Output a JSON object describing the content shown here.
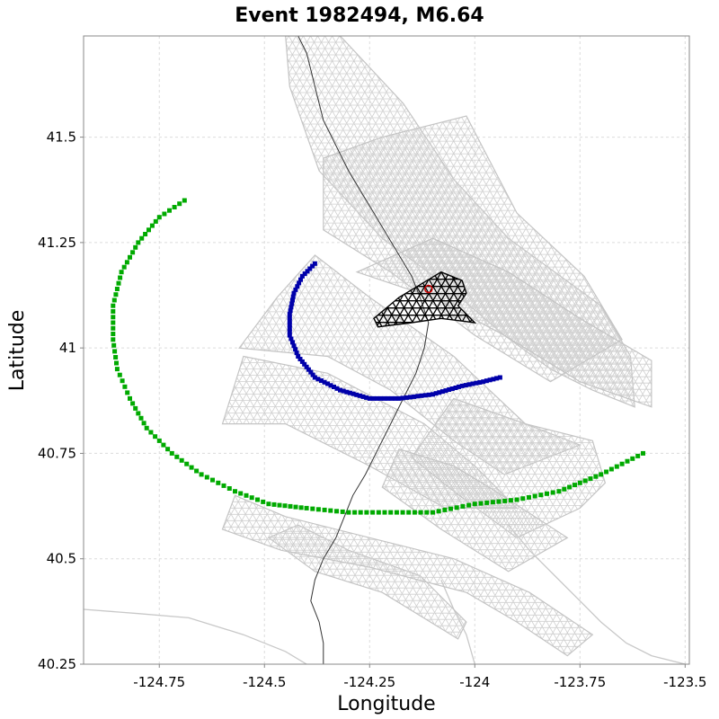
{
  "chart_data": {
    "type": "scatter",
    "title": "Event 1982494, M6.64",
    "xlabel": "Longitude",
    "ylabel": "Latitude",
    "xlim": [
      -124.93,
      -123.49
    ],
    "ylim": [
      40.25,
      41.74
    ],
    "grid": true,
    "xticks": [
      {
        "value": -124.75,
        "label": "-124.75"
      },
      {
        "value": -124.5,
        "label": "-124.5"
      },
      {
        "value": -124.25,
        "label": "-124.25"
      },
      {
        "value": -124.0,
        "label": "-124"
      },
      {
        "value": -123.75,
        "label": "-123.75"
      },
      {
        "value": -123.5,
        "label": "-123.5"
      }
    ],
    "yticks": [
      {
        "value": 40.25,
        "label": "40.25"
      },
      {
        "value": 40.5,
        "label": "40.5"
      },
      {
        "value": 40.75,
        "label": "40.75"
      },
      {
        "value": 41.0,
        "label": "41"
      },
      {
        "value": 41.25,
        "label": "41.25"
      },
      {
        "value": 41.5,
        "label": "41.5"
      }
    ],
    "fault_meshes": [
      {
        "outline": [
          [
            -124.45,
            41.74
          ],
          [
            -124.32,
            41.74
          ],
          [
            -124.17,
            41.58
          ],
          [
            -124.05,
            41.4
          ],
          [
            -123.92,
            41.26
          ],
          [
            -123.7,
            41.1
          ],
          [
            -123.63,
            40.98
          ],
          [
            -123.62,
            40.86
          ],
          [
            -123.72,
            40.9
          ],
          [
            -123.82,
            40.95
          ],
          [
            -123.93,
            41.03
          ],
          [
            -124.07,
            41.15
          ],
          [
            -124.22,
            41.26
          ],
          [
            -124.37,
            41.42
          ],
          [
            -124.44,
            41.62
          ]
        ],
        "color": "#cfcfcf"
      },
      {
        "outline": [
          [
            -124.36,
            41.45
          ],
          [
            -124.22,
            41.5
          ],
          [
            -124.02,
            41.55
          ],
          [
            -123.9,
            41.32
          ],
          [
            -123.74,
            41.17
          ],
          [
            -123.65,
            41.02
          ],
          [
            -123.82,
            40.92
          ],
          [
            -124.0,
            41.03
          ],
          [
            -124.2,
            41.18
          ],
          [
            -124.36,
            41.28
          ]
        ],
        "color": "#cfcfcf"
      },
      {
        "outline": [
          [
            -124.28,
            41.18
          ],
          [
            -124.1,
            41.12
          ],
          [
            -123.93,
            41.03
          ],
          [
            -123.75,
            40.92
          ],
          [
            -123.58,
            40.86
          ],
          [
            -123.58,
            40.97
          ],
          [
            -123.75,
            41.07
          ],
          [
            -123.92,
            41.18
          ],
          [
            -124.1,
            41.26
          ]
        ],
        "color": "#cfcfcf"
      },
      {
        "outline": [
          [
            -124.38,
            41.22
          ],
          [
            -124.25,
            41.12
          ],
          [
            -124.05,
            40.98
          ],
          [
            -123.88,
            40.82
          ],
          [
            -123.75,
            40.77
          ],
          [
            -123.93,
            40.7
          ],
          [
            -124.05,
            40.78
          ],
          [
            -124.2,
            40.9
          ],
          [
            -124.35,
            40.98
          ],
          [
            -124.56,
            41.0
          ],
          [
            -124.47,
            41.12
          ]
        ],
        "color": "#cfcfcf"
      },
      {
        "outline": [
          [
            -124.55,
            40.98
          ],
          [
            -124.35,
            40.94
          ],
          [
            -124.12,
            40.82
          ],
          [
            -124.0,
            40.72
          ],
          [
            -123.9,
            40.62
          ],
          [
            -124.07,
            40.62
          ],
          [
            -124.25,
            40.72
          ],
          [
            -124.45,
            40.82
          ],
          [
            -124.6,
            40.82
          ]
        ],
        "color": "#cfcfcf"
      },
      {
        "outline": [
          [
            -124.05,
            40.88
          ],
          [
            -123.88,
            40.82
          ],
          [
            -123.72,
            40.78
          ],
          [
            -123.69,
            40.68
          ],
          [
            -123.75,
            40.62
          ],
          [
            -123.9,
            40.55
          ],
          [
            -124.05,
            40.66
          ],
          [
            -124.15,
            40.74
          ]
        ],
        "color": "#cfcfcf"
      },
      {
        "outline": [
          [
            -124.18,
            40.76
          ],
          [
            -124.05,
            40.72
          ],
          [
            -123.95,
            40.66
          ],
          [
            -123.78,
            40.55
          ],
          [
            -123.92,
            40.47
          ],
          [
            -124.08,
            40.57
          ],
          [
            -124.22,
            40.67
          ]
        ],
        "color": "#cfcfcf"
      },
      {
        "outline": [
          [
            -124.42,
            40.58
          ],
          [
            -124.3,
            40.52
          ],
          [
            -124.13,
            40.46
          ],
          [
            -124.02,
            40.35
          ],
          [
            -124.04,
            40.31
          ],
          [
            -124.22,
            40.42
          ],
          [
            -124.38,
            40.47
          ],
          [
            -124.49,
            40.55
          ]
        ],
        "color": "#cfcfcf"
      },
      {
        "outline": [
          [
            -124.6,
            40.57
          ],
          [
            -124.46,
            40.52
          ],
          [
            -124.25,
            40.48
          ],
          [
            -124.02,
            40.42
          ],
          [
            -123.9,
            40.35
          ],
          [
            -123.78,
            40.27
          ],
          [
            -123.72,
            40.32
          ],
          [
            -123.87,
            40.42
          ],
          [
            -124.05,
            40.5
          ],
          [
            -124.25,
            40.55
          ],
          [
            -124.45,
            40.6
          ],
          [
            -124.57,
            40.65
          ]
        ],
        "color": "#cfcfcf"
      }
    ],
    "coastline": [
      [
        -124.42,
        41.74
      ],
      [
        -124.4,
        41.7
      ],
      [
        -124.39,
        41.66
      ],
      [
        -124.38,
        41.62
      ],
      [
        -124.37,
        41.58
      ],
      [
        -124.36,
        41.54
      ],
      [
        -124.34,
        41.5
      ],
      [
        -124.32,
        41.46
      ],
      [
        -124.3,
        41.42
      ],
      [
        -124.27,
        41.37
      ],
      [
        -124.24,
        41.32
      ],
      [
        -124.21,
        41.27
      ],
      [
        -124.18,
        41.22
      ],
      [
        -124.15,
        41.17
      ],
      [
        -124.13,
        41.12
      ],
      [
        -124.11,
        41.06
      ],
      [
        -124.12,
        41.0
      ],
      [
        -124.14,
        40.94
      ],
      [
        -124.17,
        40.88
      ],
      [
        -124.2,
        40.82
      ],
      [
        -124.23,
        40.76
      ],
      [
        -124.26,
        40.7
      ],
      [
        -124.29,
        40.65
      ],
      [
        -124.31,
        40.6
      ],
      [
        -124.33,
        40.55
      ],
      [
        -124.36,
        40.5
      ],
      [
        -124.38,
        40.45
      ],
      [
        -124.39,
        40.4
      ],
      [
        -124.37,
        40.35
      ],
      [
        -124.36,
        40.3
      ],
      [
        -124.36,
        40.25
      ]
    ],
    "roads": [
      [
        [
          -124.93,
          40.38
        ],
        [
          -124.8,
          40.37
        ],
        [
          -124.68,
          40.36
        ],
        [
          -124.55,
          40.32
        ],
        [
          -124.45,
          40.28
        ],
        [
          -124.4,
          40.25
        ]
      ],
      [
        [
          -123.92,
          40.58
        ],
        [
          -123.87,
          40.52
        ],
        [
          -123.81,
          40.46
        ],
        [
          -123.75,
          40.4
        ],
        [
          -123.7,
          40.35
        ],
        [
          -123.64,
          40.3
        ],
        [
          -123.58,
          40.27
        ],
        [
          -123.5,
          40.25
        ]
      ],
      [
        [
          -124.08,
          40.45
        ],
        [
          -124.05,
          40.38
        ],
        [
          -124.02,
          40.32
        ],
        [
          -124.0,
          40.25
        ]
      ]
    ],
    "series": [
      {
        "name": "",
        "color": "#00aa00",
        "points": [
          [
            -124.69,
            41.35
          ],
          [
            -124.75,
            41.31
          ],
          [
            -124.8,
            41.25
          ],
          [
            -124.84,
            41.18
          ],
          [
            -124.86,
            41.1
          ],
          [
            -124.86,
            41.02
          ],
          [
            -124.85,
            40.95
          ],
          [
            -124.82,
            40.88
          ],
          [
            -124.78,
            40.81
          ],
          [
            -124.72,
            40.75
          ],
          [
            -124.65,
            40.7
          ],
          [
            -124.57,
            40.66
          ],
          [
            -124.49,
            40.63
          ],
          [
            -124.4,
            40.62
          ],
          [
            -124.3,
            40.61
          ],
          [
            -124.2,
            40.61
          ],
          [
            -124.1,
            40.61
          ],
          [
            -124.0,
            40.63
          ],
          [
            -123.9,
            40.64
          ],
          [
            -123.8,
            40.66
          ],
          [
            -123.7,
            40.7
          ],
          [
            -123.6,
            40.75
          ]
        ]
      },
      {
        "name": "",
        "color": "#0000aa",
        "points": [
          [
            -124.38,
            41.2
          ],
          [
            -124.41,
            41.17
          ],
          [
            -124.43,
            41.13
          ],
          [
            -124.44,
            41.08
          ],
          [
            -124.44,
            41.03
          ],
          [
            -124.42,
            40.98
          ],
          [
            -124.38,
            40.93
          ],
          [
            -124.32,
            40.9
          ],
          [
            -124.25,
            40.88
          ],
          [
            -124.18,
            40.88
          ],
          [
            -124.1,
            40.89
          ],
          [
            -124.03,
            40.91
          ],
          [
            -123.98,
            40.92
          ],
          [
            -123.94,
            40.93
          ]
        ]
      },
      {
        "name": "",
        "color": "#000000",
        "points": []
      }
    ],
    "hypocenter_mesh": {
      "outline": [
        [
          -124.24,
          41.07
        ],
        [
          -124.18,
          41.12
        ],
        [
          -124.13,
          41.15
        ],
        [
          -124.08,
          41.18
        ],
        [
          -124.03,
          41.16
        ],
        [
          -124.02,
          41.13
        ],
        [
          -124.04,
          41.1
        ],
        [
          -124.0,
          41.06
        ],
        [
          -124.08,
          41.07
        ],
        [
          -124.15,
          41.06
        ],
        [
          -124.23,
          41.05
        ]
      ],
      "color": "#000000"
    },
    "epicenter": {
      "lon": -124.11,
      "lat": 41.14,
      "color": "#cc0000"
    }
  }
}
